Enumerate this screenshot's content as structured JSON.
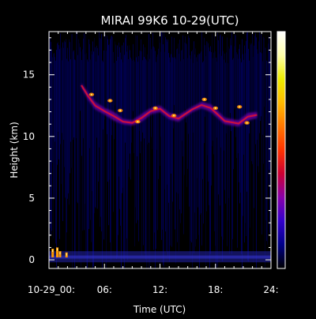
{
  "chart_data": {
    "type": "heatmap",
    "title": "MIRAI 99K6 10-29(UTC)",
    "xlabel": "Time (UTC)",
    "ylabel": "Height (km)",
    "x_tick_labels": [
      "10-29_00:",
      "06:",
      "12:",
      "18:",
      "24:"
    ],
    "x_ticks": [
      0,
      6,
      12,
      18,
      24
    ],
    "xlim": [
      0,
      24
    ],
    "y_ticks": [
      0,
      5,
      10,
      15
    ],
    "ylim": [
      -0.7,
      18.5
    ],
    "grid": false,
    "colorbar": {
      "placement": "right",
      "colors": [
        "#000000",
        "#000088",
        "#3300cc",
        "#8800aa",
        "#cc0033",
        "#ff3300",
        "#ff7700",
        "#ffbb00",
        "#eeee00",
        "#ffffaa",
        "#ffffff"
      ]
    },
    "background_color": "#000000",
    "noise_color": "#00006a",
    "cloud_layer_top": [
      [
        3.5,
        14.3
      ],
      [
        4.2,
        13.6
      ],
      [
        5.0,
        12.8
      ],
      [
        6.0,
        12.3
      ],
      [
        7.0,
        12.0
      ],
      [
        8.0,
        11.4
      ],
      [
        9.0,
        11.3
      ],
      [
        10.0,
        11.8
      ],
      [
        11.0,
        12.3
      ],
      [
        12.0,
        12.5
      ],
      [
        13.0,
        11.9
      ],
      [
        14.0,
        11.7
      ],
      [
        15.5,
        12.4
      ],
      [
        16.5,
        12.8
      ],
      [
        17.5,
        12.6
      ],
      [
        19.0,
        11.5
      ],
      [
        20.5,
        11.3
      ],
      [
        21.5,
        11.9
      ],
      [
        22.5,
        12.0
      ]
    ],
    "cloud_layer_base": [
      [
        3.5,
        14.0
      ],
      [
        4.2,
        13.0
      ],
      [
        5.0,
        12.2
      ],
      [
        6.0,
        11.8
      ],
      [
        7.0,
        11.3
      ],
      [
        8.0,
        11.0
      ],
      [
        9.0,
        10.9
      ],
      [
        10.0,
        11.2
      ],
      [
        11.0,
        11.8
      ],
      [
        12.0,
        12.0
      ],
      [
        13.0,
        11.4
      ],
      [
        14.0,
        11.2
      ],
      [
        15.5,
        12.0
      ],
      [
        16.5,
        12.3
      ],
      [
        17.5,
        12.0
      ],
      [
        19.0,
        11.0
      ],
      [
        20.5,
        10.8
      ],
      [
        21.5,
        11.3
      ],
      [
        22.5,
        11.5
      ]
    ],
    "cloud_peak_points": [
      [
        4.6,
        13.4
      ],
      [
        6.6,
        12.9
      ],
      [
        7.7,
        12.1
      ],
      [
        9.6,
        11.2
      ],
      [
        11.5,
        12.3
      ],
      [
        13.5,
        11.7
      ],
      [
        16.8,
        13.0
      ],
      [
        18.0,
        12.3
      ],
      [
        20.6,
        12.4
      ],
      [
        21.4,
        11.1
      ]
    ],
    "surface_echo_points": [
      [
        0.4,
        0.9
      ],
      [
        0.9,
        1.0
      ],
      [
        1.2,
        0.7
      ],
      [
        1.9,
        0.6
      ]
    ]
  }
}
